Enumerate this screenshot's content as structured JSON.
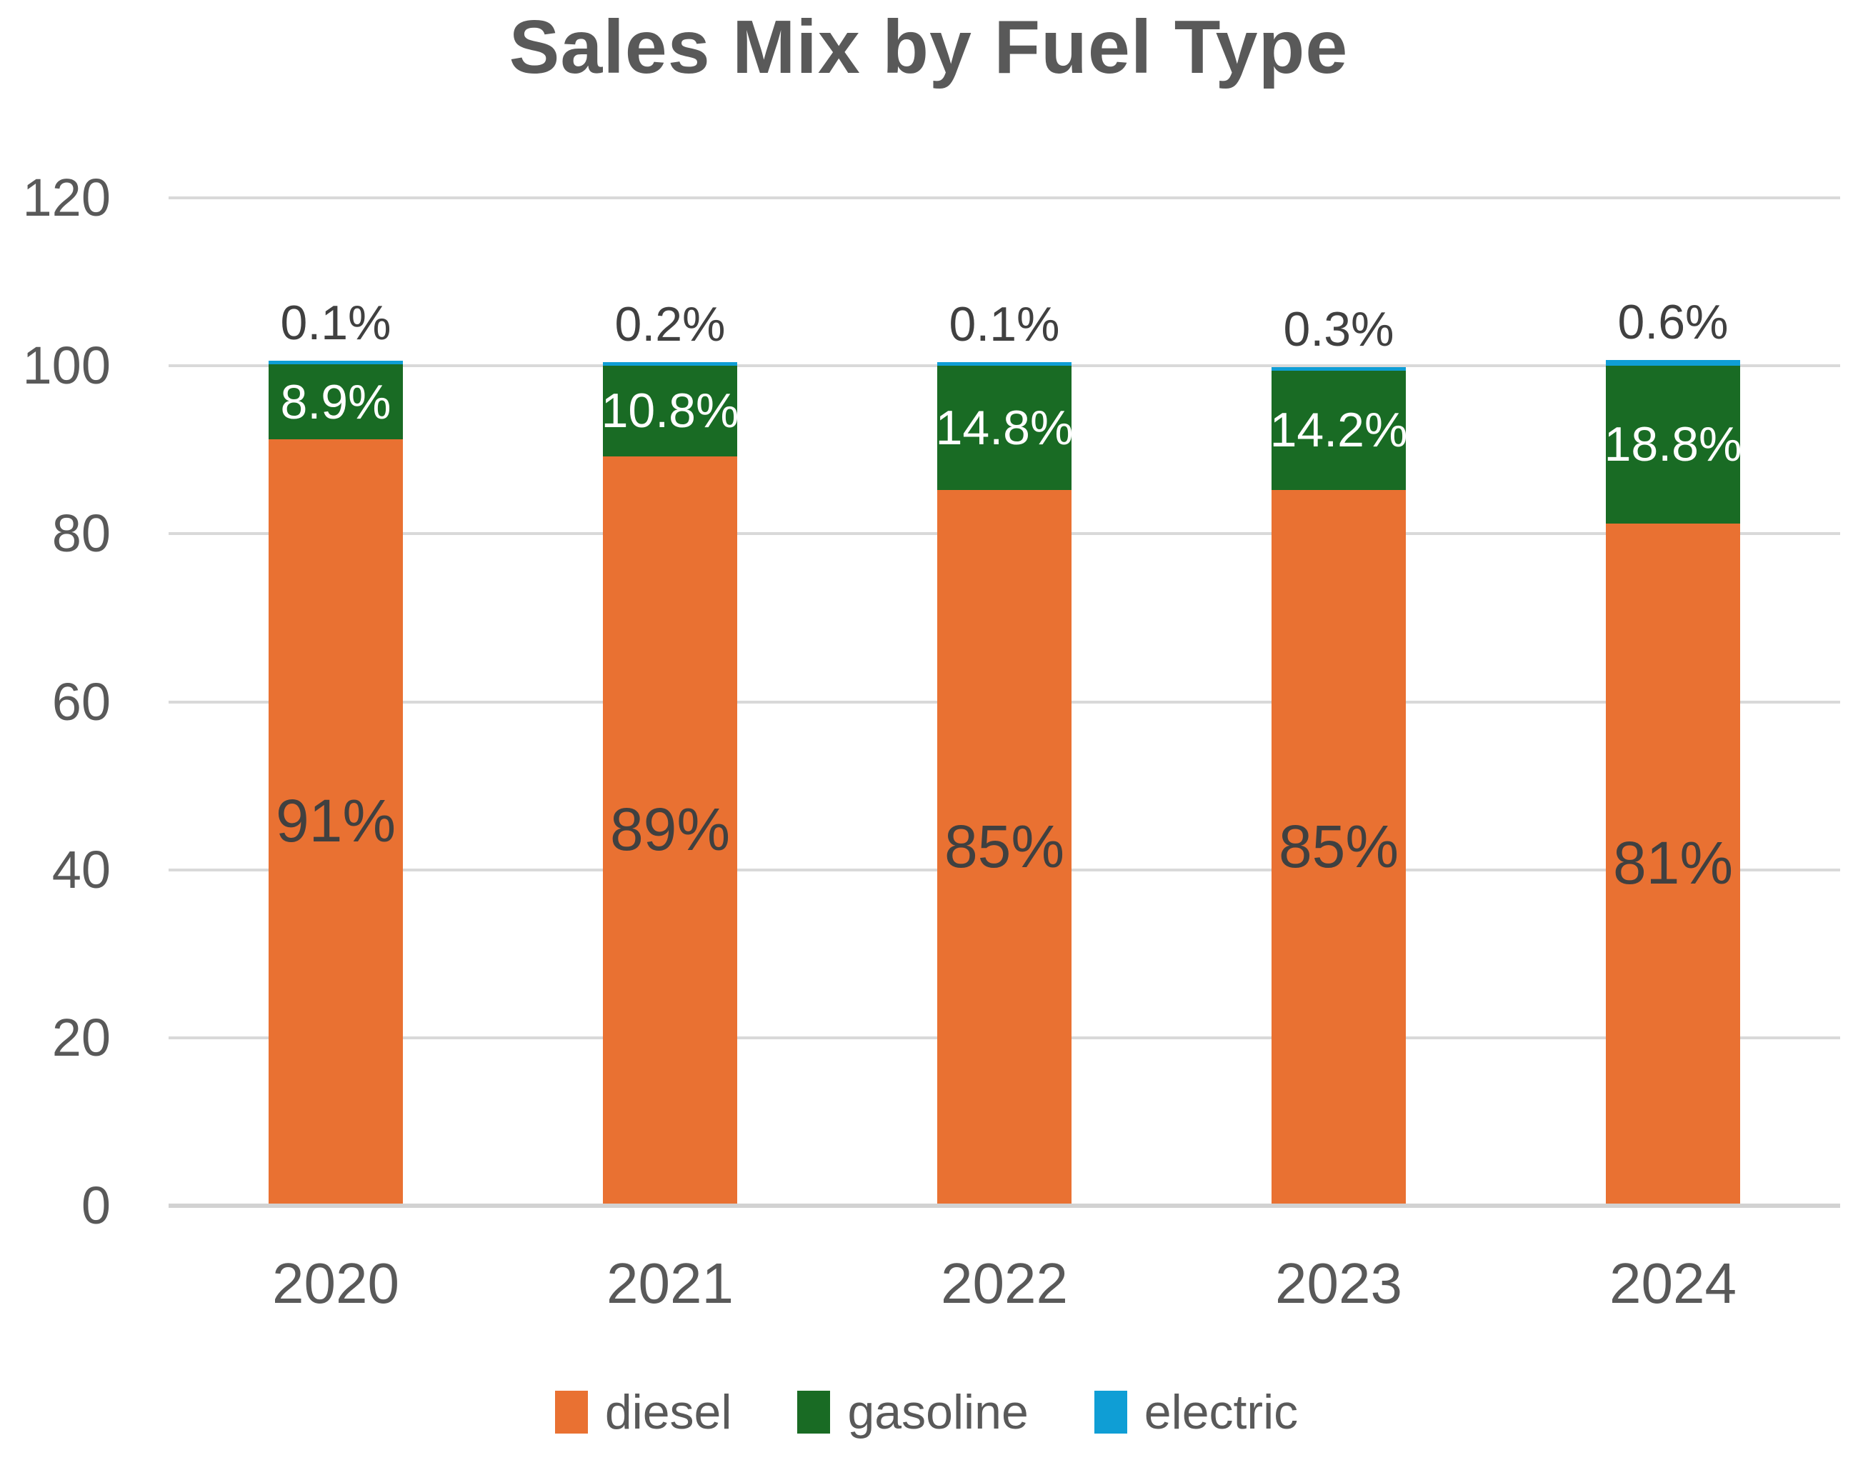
{
  "chart_data": {
    "type": "bar",
    "subtype": "stacked-column",
    "title": "Sales Mix by Fuel Type",
    "categories": [
      "2020",
      "2021",
      "2022",
      "2023",
      "2024"
    ],
    "series": [
      {
        "name": "diesel",
        "color": "#E97132",
        "values": [
          91,
          89,
          85,
          85,
          81
        ],
        "labels": [
          "91%",
          "89%",
          "85%",
          "85%",
          "81%"
        ],
        "label_color": "#404040",
        "label_position": "inside-center",
        "label_font_px": 84
      },
      {
        "name": "gasoline",
        "color": "#196B24",
        "values": [
          8.9,
          10.8,
          14.8,
          14.2,
          18.8
        ],
        "labels": [
          "8.9%",
          "10.8%",
          "14.8%",
          "14.2%",
          "18.8%"
        ],
        "label_color": "#FFFFFF",
        "label_position": "inside-center",
        "label_font_px": 68
      },
      {
        "name": "electric",
        "color": "#0F9ED5",
        "values": [
          0.1,
          0.2,
          0.1,
          0.3,
          0.6
        ],
        "labels": [
          "0.1%",
          "0.2%",
          "0.1%",
          "0.3%",
          "0.6%"
        ],
        "label_color": "#404040",
        "label_position": "outside-end",
        "label_font_px": 68
      }
    ],
    "y_axis": {
      "min": 0,
      "max": 120,
      "step": 20,
      "tick_labels": [
        "0",
        "20",
        "40",
        "60",
        "80",
        "100",
        "120"
      ]
    },
    "grid": true,
    "legend_position": "bottom",
    "legend_entries": [
      "diesel",
      "gasoline",
      "electric"
    ],
    "style_colors": {
      "gridline": "#D9D9D9",
      "axis_line": "#D2D2D2",
      "axis_text": "#595959",
      "title_text": "#595959",
      "background": "#FFFFFF"
    }
  }
}
